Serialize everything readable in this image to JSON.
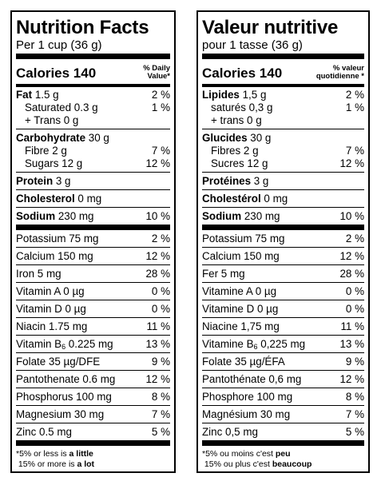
{
  "left": {
    "title": "Nutrition Facts",
    "serving": "Per 1 cup (36 g)",
    "calories_label": "Calories 140",
    "dv_header_line1": "% Daily",
    "dv_header_line2": "Value*",
    "fat": {
      "label": "Fat",
      "amount": "1.5 g",
      "pct": "2 %"
    },
    "saturated": "Saturated 0.3 g",
    "trans": "+ Trans 0 g",
    "sat_trans_pct": "1 %",
    "carb": {
      "label": "Carbohydrate",
      "amount": "30 g"
    },
    "fibre": {
      "label": "Fibre 2 g",
      "pct": "7 %"
    },
    "sugars": {
      "label": "Sugars 12 g",
      "pct": "12 %"
    },
    "protein": {
      "label": "Protein",
      "amount": "3 g"
    },
    "cholesterol": {
      "label": "Cholesterol",
      "amount": "0 mg"
    },
    "sodium": {
      "label": "Sodium",
      "amount": "230 mg",
      "pct": "10 %"
    },
    "minerals": [
      {
        "label": "Potassium 75 mg",
        "pct": "2 %"
      },
      {
        "label": "Calcium 150 mg",
        "pct": "12 %"
      },
      {
        "label": "Iron 5 mg",
        "pct": "28 %"
      },
      {
        "label": "Vitamin A 0 µg",
        "pct": "0 %"
      },
      {
        "label": "Vitamin D 0 µg",
        "pct": "0 %"
      },
      {
        "label": "Niacin 1.75 mg",
        "pct": "11 %"
      }
    ],
    "b6": {
      "prefix": "Vitamin B",
      "sub": "6",
      "suffix": " 0.225 mg",
      "pct": "13 %"
    },
    "minerals2": [
      {
        "label": "Folate 35 µg/DFE",
        "pct": "9 %"
      },
      {
        "label": "Pantothenate 0.6 mg",
        "pct": "12 %"
      },
      {
        "label": "Phosphorus 100 mg",
        "pct": "8 %"
      },
      {
        "label": "Magnesium 30 mg",
        "pct": "7 %"
      },
      {
        "label": "Zinc 0.5 mg",
        "pct": "5 %"
      }
    ],
    "foot1_a": "*5% or less is ",
    "foot1_b": "a little",
    "foot2_a": " 15% or more is ",
    "foot2_b": "a lot"
  },
  "right": {
    "title": "Valeur nutritive",
    "serving": "pour 1 tasse (36 g)",
    "calories_label": "Calories 140",
    "dv_header_line1": "% valeur",
    "dv_header_line2": "quotidienne *",
    "fat": {
      "label": "Lipides",
      "amount": "1,5 g",
      "pct": "2 %"
    },
    "saturated": "saturés 0,3 g",
    "trans": "+ trans 0 g",
    "sat_trans_pct": "1 %",
    "carb": {
      "label": "Glucides",
      "amount": "30 g"
    },
    "fibre": {
      "label": "Fibres 2 g",
      "pct": "7 %"
    },
    "sugars": {
      "label": "Sucres 12 g",
      "pct": "12 %"
    },
    "protein": {
      "label": "Protéines",
      "amount": "3 g"
    },
    "cholesterol": {
      "label": "Cholestérol",
      "amount": "0 mg"
    },
    "sodium": {
      "label": "Sodium",
      "amount": "230 mg",
      "pct": "10 %"
    },
    "minerals": [
      {
        "label": "Potassium 75 mg",
        "pct": "2 %"
      },
      {
        "label": "Calcium 150 mg",
        "pct": "12 %"
      },
      {
        "label": "Fer 5 mg",
        "pct": "28 %"
      },
      {
        "label": "Vitamine A 0 µg",
        "pct": "0 %"
      },
      {
        "label": "Vitamine D 0 µg",
        "pct": "0 %"
      },
      {
        "label": "Niacine 1,75 mg",
        "pct": "11 %"
      }
    ],
    "b6": {
      "prefix": "Vitamine B",
      "sub": "6",
      "suffix": " 0,225 mg",
      "pct": "13 %"
    },
    "minerals2": [
      {
        "label": "Folate 35 µg/ÉFA",
        "pct": "9 %"
      },
      {
        "label": "Pantothénate 0,6 mg",
        "pct": "12 %"
      },
      {
        "label": "Phosphore 100 mg",
        "pct": "8 %"
      },
      {
        "label": "Magnésium 30 mg",
        "pct": "7 %"
      },
      {
        "label": "Zinc 0,5 mg",
        "pct": "5 %"
      }
    ],
    "foot1_a": "*5% ou moins c'est ",
    "foot1_b": "peu",
    "foot2_a": " 15% ou plus c'est ",
    "foot2_b": "beaucoup"
  }
}
